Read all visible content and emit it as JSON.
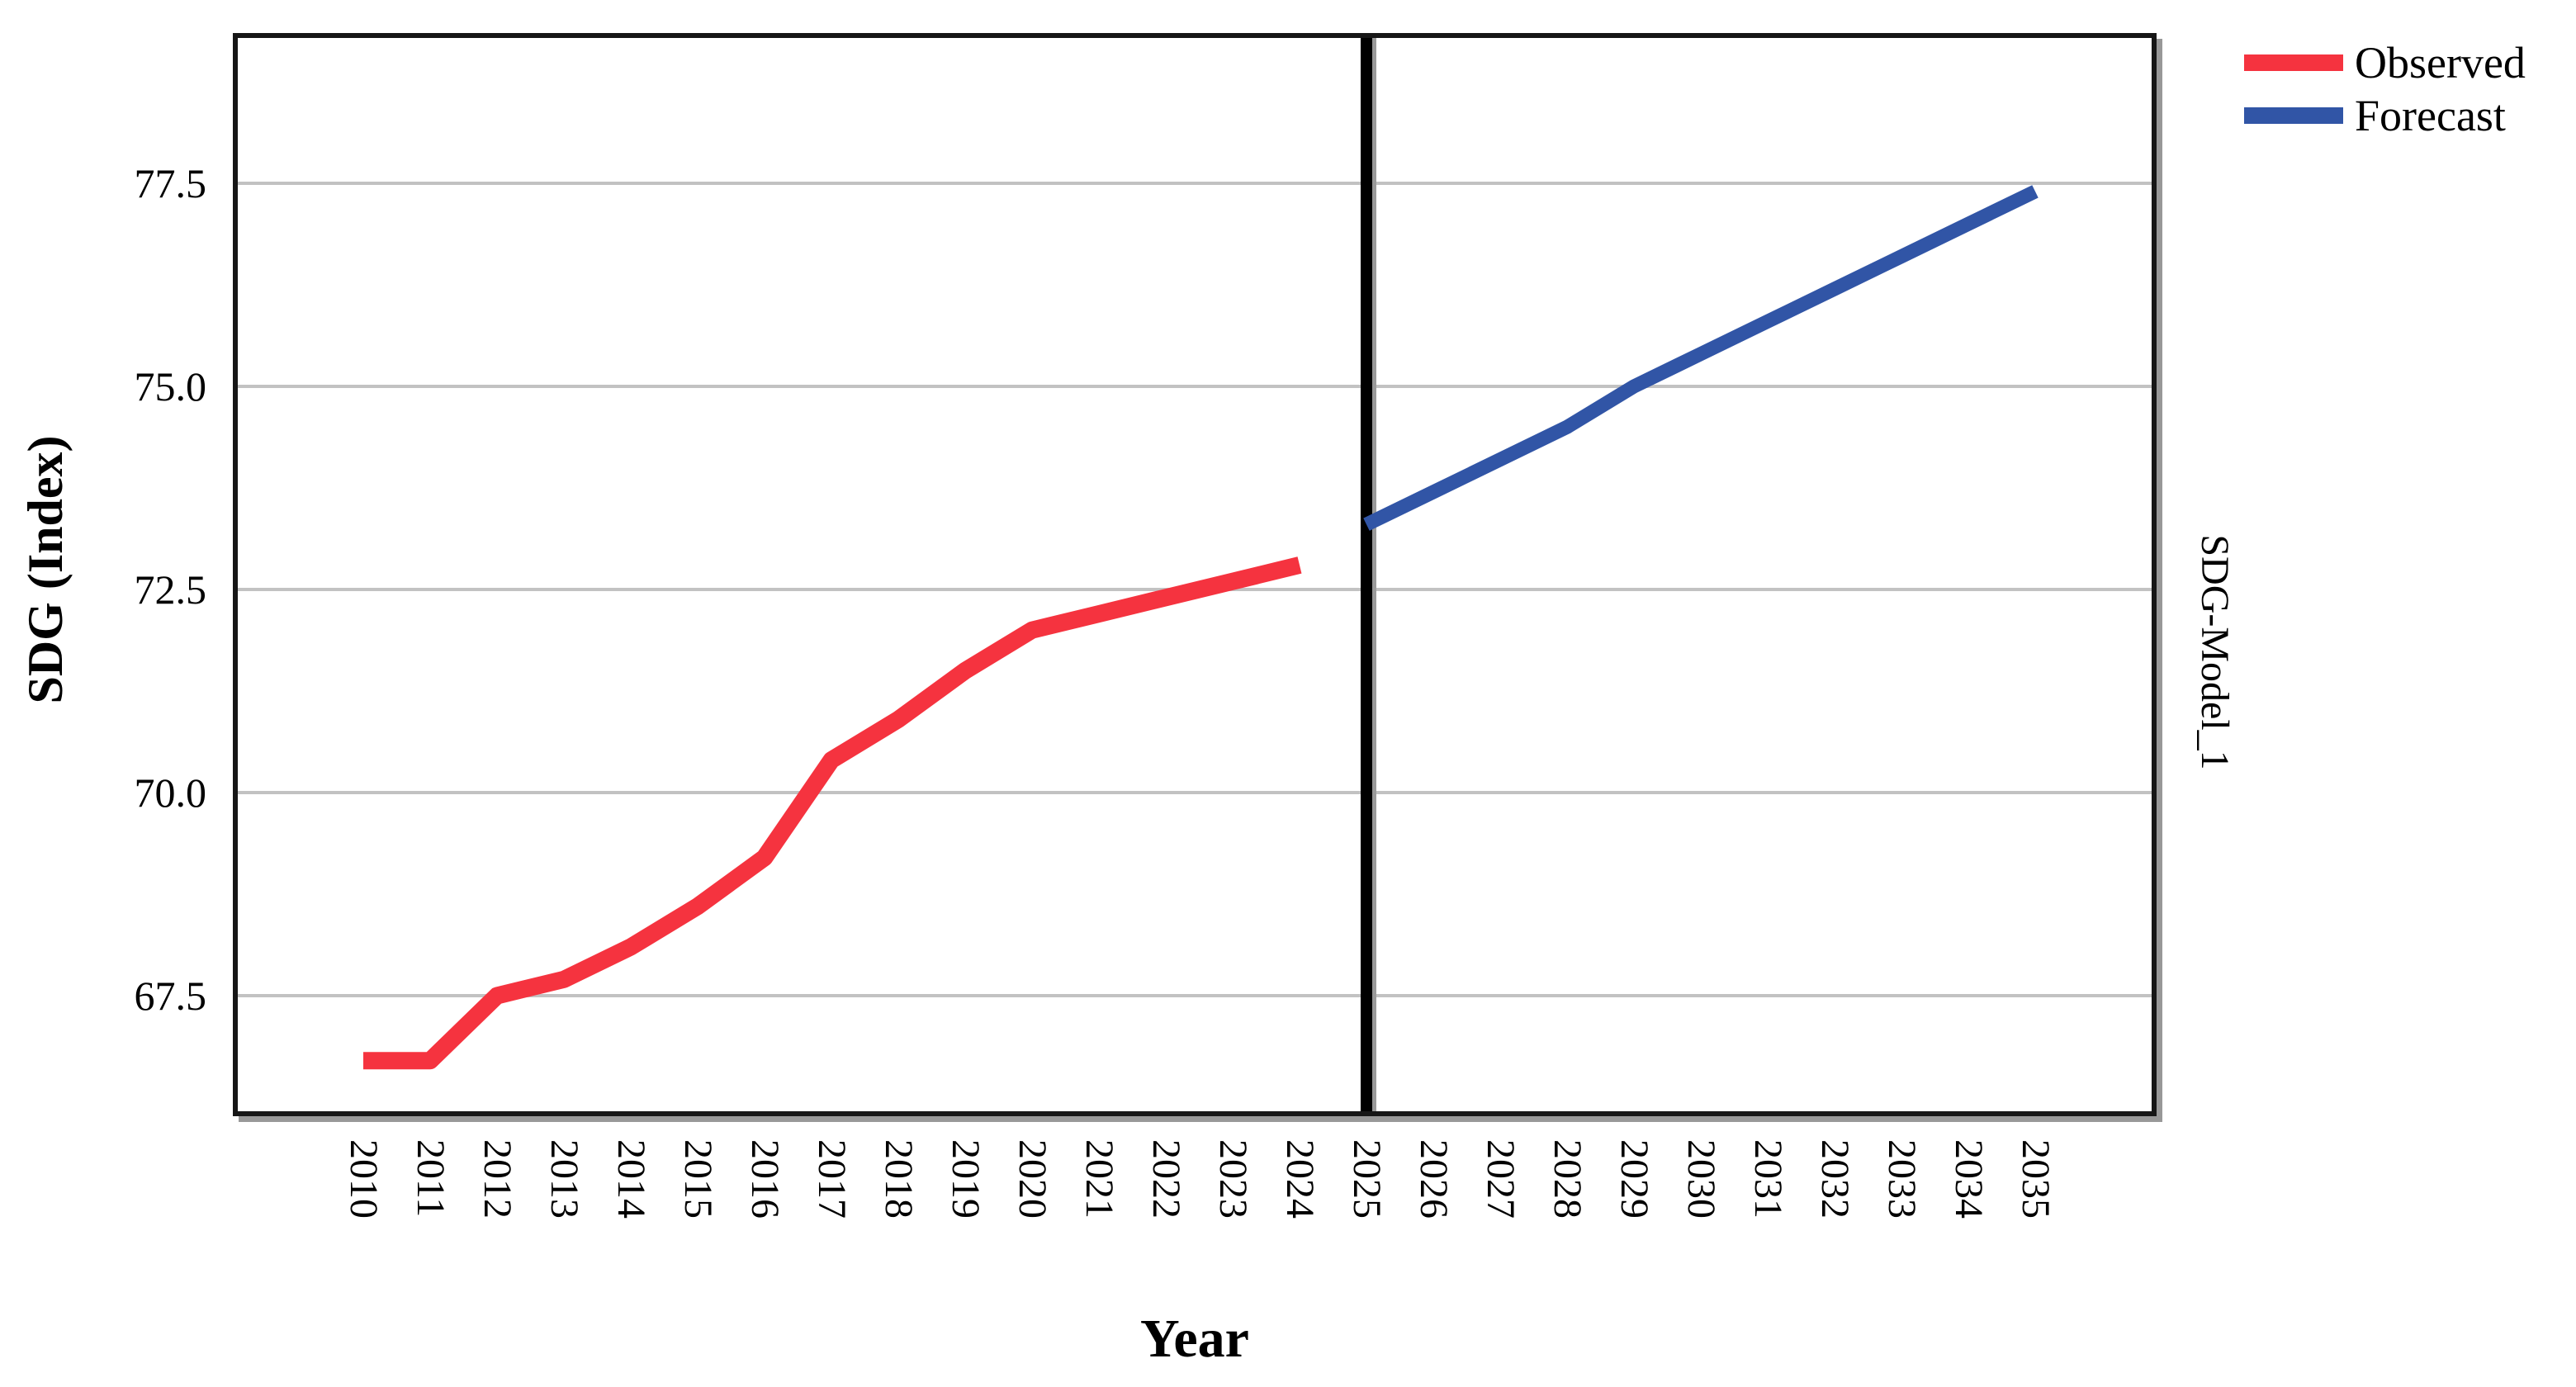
{
  "axis_titles": {
    "x": "Year",
    "y": "SDG (Index)",
    "right": "SDG-Model_1"
  },
  "legend": {
    "items": [
      {
        "label": "Observed",
        "color": "#f5333f"
      },
      {
        "label": "Forecast",
        "color": "#3155a6"
      }
    ]
  },
  "colors": {
    "observed": "#f5333f",
    "forecast": "#3155a6",
    "gridline": "#c2c2c2",
    "frame": "#161616",
    "separator": "#000000",
    "background": "#ffffff"
  },
  "chart_data": {
    "type": "line",
    "title": "",
    "xlabel": "Year",
    "ylabel": "SDG (Index)",
    "right_axis_label": "SDG-Model_1",
    "grid": "horizontal",
    "legend_position": "top-right",
    "ylim": [
      66.0,
      79.3
    ],
    "separator_x": 2025,
    "y_ticks": [
      {
        "label": "77.5",
        "value": 77.5
      },
      {
        "label": "75.0",
        "value": 75.0
      },
      {
        "label": "72.5",
        "value": 72.5
      },
      {
        "label": "70.0",
        "value": 70.0
      },
      {
        "label": "67.5",
        "value": 67.5
      }
    ],
    "x_ticks": [
      2010,
      2011,
      2012,
      2013,
      2014,
      2015,
      2016,
      2017,
      2018,
      2019,
      2020,
      2021,
      2022,
      2023,
      2024,
      2025,
      2026,
      2027,
      2028,
      2029,
      2030,
      2031,
      2032,
      2033,
      2034,
      2035
    ],
    "series": [
      {
        "name": "Observed",
        "color": "#f5333f",
        "stroke_width": 21,
        "x": [
          2010,
          2011,
          2012,
          2013,
          2014,
          2015,
          2016,
          2017,
          2018,
          2019,
          2020,
          2021,
          2022,
          2023,
          2024
        ],
        "values": [
          66.7,
          66.7,
          67.5,
          67.7,
          68.1,
          68.6,
          69.2,
          70.4,
          70.9,
          71.5,
          72.0,
          72.2,
          72.4,
          72.6,
          72.8
        ]
      },
      {
        "name": "Forecast",
        "color": "#3155a6",
        "stroke_width": 17,
        "x": [
          2025,
          2026,
          2027,
          2028,
          2029,
          2030,
          2031,
          2032,
          2033,
          2034,
          2035
        ],
        "values": [
          73.3,
          73.7,
          74.1,
          74.5,
          75.0,
          75.4,
          75.8,
          76.2,
          76.6,
          77.0,
          77.4
        ]
      }
    ]
  }
}
